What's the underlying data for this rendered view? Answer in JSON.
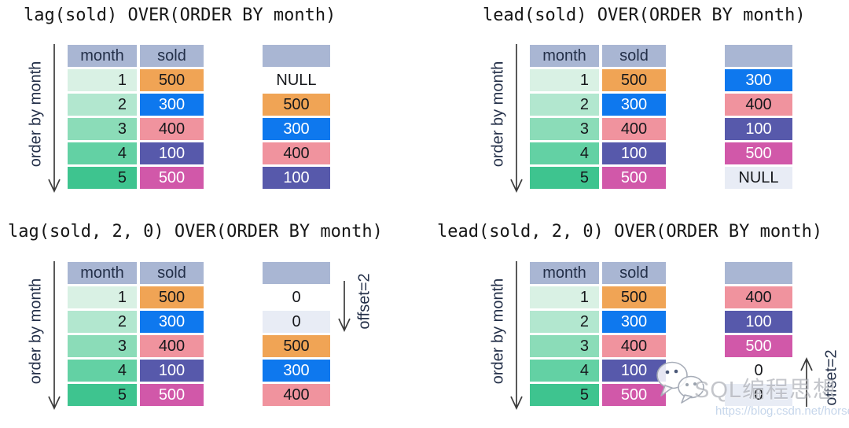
{
  "order_label": "order by month",
  "table": {
    "columns": [
      "month",
      "sold"
    ],
    "rows": [
      {
        "month": "1",
        "month_bg": "green1",
        "sold": "500",
        "sold_bg": "orange",
        "sold_fg": "dark"
      },
      {
        "month": "2",
        "month_bg": "green2",
        "sold": "300",
        "sold_bg": "blue",
        "sold_fg": "light"
      },
      {
        "month": "3",
        "month_bg": "green3",
        "sold": "400",
        "sold_bg": "pink",
        "sold_fg": "dark"
      },
      {
        "month": "4",
        "month_bg": "green4",
        "sold": "100",
        "sold_bg": "indigo",
        "sold_fg": "light"
      },
      {
        "month": "5",
        "month_bg": "green5",
        "sold": "500",
        "sold_bg": "magenta",
        "sold_fg": "light"
      }
    ]
  },
  "panels": [
    {
      "id": "panel-lag",
      "title": "lag(sold) OVER(ORDER BY month)",
      "result": [
        {
          "value": "NULL",
          "bg": "none",
          "fg": "dark"
        },
        {
          "value": "500",
          "bg": "orange",
          "fg": "dark"
        },
        {
          "value": "300",
          "bg": "blue",
          "fg": "light"
        },
        {
          "value": "400",
          "bg": "pink",
          "fg": "dark"
        },
        {
          "value": "100",
          "bg": "indigo",
          "fg": "light"
        }
      ]
    },
    {
      "id": "panel-lead",
      "title": "lead(sold) OVER(ORDER BY month)",
      "result": [
        {
          "value": "300",
          "bg": "blue",
          "fg": "light"
        },
        {
          "value": "400",
          "bg": "pink",
          "fg": "dark"
        },
        {
          "value": "100",
          "bg": "indigo",
          "fg": "light"
        },
        {
          "value": "500",
          "bg": "magenta",
          "fg": "light"
        },
        {
          "value": "NULL",
          "bg": "lavender",
          "fg": "dark"
        }
      ]
    },
    {
      "id": "panel-lag2",
      "title": "lag(sold, 2, 0) OVER(ORDER BY month)",
      "offset": {
        "label": "offset=2",
        "direction": "down"
      },
      "result": [
        {
          "value": "0",
          "bg": "none",
          "fg": "dark"
        },
        {
          "value": "0",
          "bg": "lavender",
          "fg": "dark"
        },
        {
          "value": "500",
          "bg": "orange",
          "fg": "dark"
        },
        {
          "value": "300",
          "bg": "blue",
          "fg": "light"
        },
        {
          "value": "400",
          "bg": "pink",
          "fg": "dark"
        }
      ]
    },
    {
      "id": "panel-lead2",
      "title": "lead(sold, 2, 0) OVER(ORDER BY month)",
      "offset": {
        "label": "offset=2",
        "direction": "up"
      },
      "result": [
        {
          "value": "400",
          "bg": "pink",
          "fg": "dark"
        },
        {
          "value": "100",
          "bg": "indigo",
          "fg": "light"
        },
        {
          "value": "500",
          "bg": "magenta",
          "fg": "light"
        },
        {
          "value": "0",
          "bg": "none",
          "fg": "dark"
        },
        {
          "value": "0",
          "bg": "lavender",
          "fg": "dark"
        }
      ]
    }
  ],
  "watermark": {
    "icon": "wechat-icon",
    "brand": "SQL编程思想",
    "url": "https://blog.csdn.net/horses"
  },
  "colors": {
    "header_bg": "#a9b6d3",
    "header_text": "#232f48",
    "green1": "#d9f1e4",
    "green2": "#b2e7cf",
    "green3": "#8bdcb8",
    "green4": "#63d1a4",
    "green5": "#3ec48f",
    "orange": "#f0a455",
    "blue": "#0e78ee",
    "pink": "#f0939e",
    "indigo": "#5759ab",
    "magenta": "#d158a9",
    "lavender": "#e8ecf5",
    "none": "transparent",
    "dark": "#16181c",
    "light": "#ffffff",
    "title_text": "#161616",
    "label_text": "#243049",
    "arrow": "#3c3c3c"
  }
}
